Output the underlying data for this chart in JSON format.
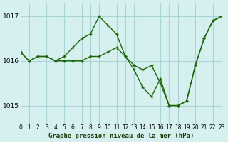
{
  "title": "Graphe pression niveau de la mer (hPa)",
  "bg_color": "#d6f0f0",
  "grid_color": "#aad4d4",
  "line_color": "#1a6600",
  "marker_color": "#1a6600",
  "xlim": [
    0,
    23
  ],
  "ylim": [
    1014.6,
    1017.3
  ],
  "yticks": [
    1015,
    1016,
    1017
  ],
  "xtick_labels": [
    "0",
    "1",
    "2",
    "3",
    "4",
    "5",
    "6",
    "7",
    "8",
    "9",
    "10",
    "11",
    "12",
    "13",
    "14",
    "15",
    "16",
    "17",
    "18",
    "19",
    "20",
    "21",
    "22",
    "23"
  ],
  "series": [
    [
      1016.2,
      1016.0,
      1016.1,
      1016.1,
      1016.0,
      1016.1,
      1016.3,
      1016.5,
      1016.6,
      1017.0,
      1016.8,
      1016.6,
      1016.1,
      1015.9,
      1015.8,
      1015.9,
      1015.5,
      1015.0,
      1015.0,
      1015.1,
      1015.9,
      1016.5,
      1016.9,
      1017.0
    ],
    [
      1016.2,
      1016.0,
      1016.1,
      1016.1,
      1016.0,
      1016.0,
      1016.0,
      1016.0,
      1016.1,
      1016.1,
      1016.2,
      1016.3,
      1016.1,
      1015.8,
      1015.4,
      1015.2,
      1015.6,
      1015.0,
      1015.0,
      1015.1,
      1015.9,
      1016.5,
      1016.9,
      1017.0
    ]
  ]
}
